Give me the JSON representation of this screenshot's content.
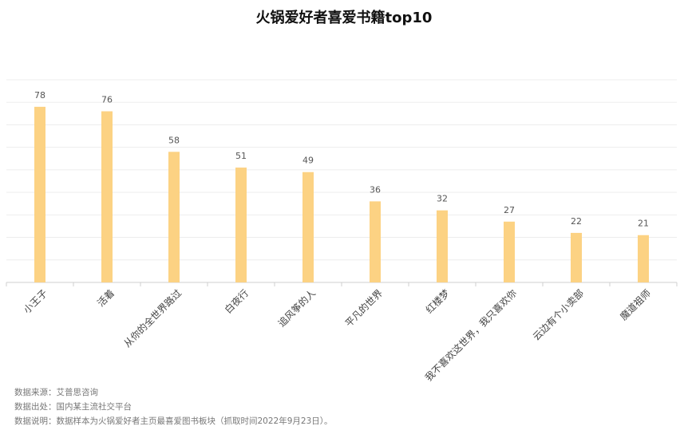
{
  "chart_data": {
    "type": "bar",
    "title": "火锅爱好者喜爱书籍top10",
    "categories": [
      "小王子",
      "活着",
      "从你的全世界路过",
      "白夜行",
      "追风筝的人",
      "平凡的世界",
      "红楼梦",
      "我不喜欢这世界，我只喜欢你",
      "云边有个小卖部",
      "魔道祖师"
    ],
    "values": [
      78,
      76,
      58,
      51,
      49,
      36,
      32,
      27,
      22,
      21
    ],
    "ylim": [
      0,
      90
    ],
    "grid": true,
    "bar_color": "#FCD283",
    "grid_color": "#EDEDED"
  },
  "notes": [
    "数据来源：艾普思咨询",
    "数据出处：国内某主流社交平台",
    "数据说明：数据样本为火锅爱好者主页最喜爱图书板块（抓取时间2022年9月23日）。"
  ]
}
